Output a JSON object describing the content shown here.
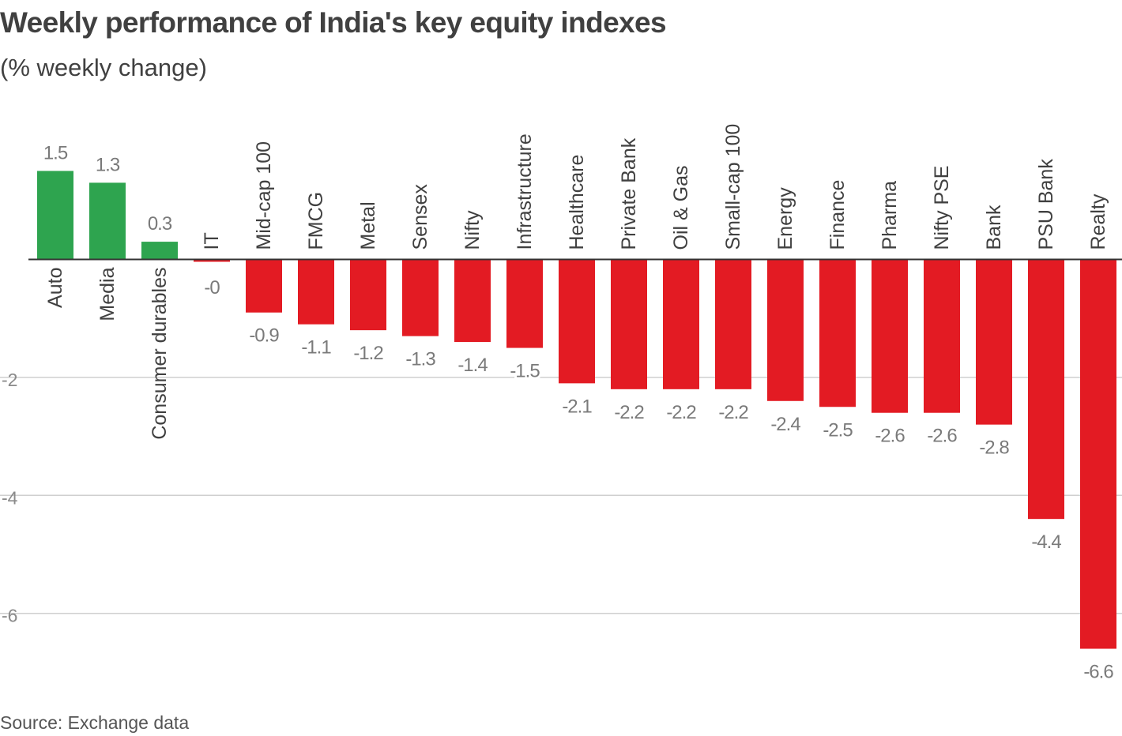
{
  "chart_data": {
    "type": "bar",
    "title": "Weekly performance of India's key equity indexes",
    "subtitle": "(% weekly change)",
    "source": "Source: Exchange data",
    "categories": [
      "Auto",
      "Media",
      "Consumer durables",
      "IT",
      "Mid-cap 100",
      "FMCG",
      "Metal",
      "Sensex",
      "Nifty",
      "Infrastructure",
      "Healthcare",
      "Private Bank",
      "Oil & Gas",
      "Small-cap 100",
      "Energy",
      "Finance",
      "Pharma",
      "Nifty PSE",
      "Bank",
      "PSU Bank",
      "Realty"
    ],
    "values": [
      1.5,
      1.3,
      0.3,
      -0.04,
      -0.9,
      -1.1,
      -1.2,
      -1.3,
      -1.4,
      -1.5,
      -2.1,
      -2.2,
      -2.2,
      -2.2,
      -2.4,
      -2.5,
      -2.6,
      -2.6,
      -2.8,
      -4.4,
      -6.6
    ],
    "value_labels": [
      "1.5",
      "1.3",
      "0.3",
      "-0",
      "-0.9",
      "-1.1",
      "-1.2",
      "-1.3",
      "-1.4",
      "-1.5",
      "-2.1",
      "-2.2",
      "-2.2",
      "-2.2",
      "-2.4",
      "-2.5",
      "-2.6",
      "-2.6",
      "-2.8",
      "-4.4",
      "-6.6"
    ],
    "ylim": [
      -6.6,
      1.5
    ],
    "yticks": [
      {
        "value": -2,
        "label": "-2"
      },
      {
        "value": -4,
        "label": "-4"
      },
      {
        "value": -6,
        "label": "-6"
      }
    ],
    "grid": true,
    "colors": {
      "positive": "#2ea44f",
      "negative": "#e31b23",
      "gridline": "#cfcfcf",
      "zero_line": "#333333",
      "value_label": "#7a7a7a",
      "category_label": "#404040",
      "tick_label": "#8a8a8a"
    }
  }
}
